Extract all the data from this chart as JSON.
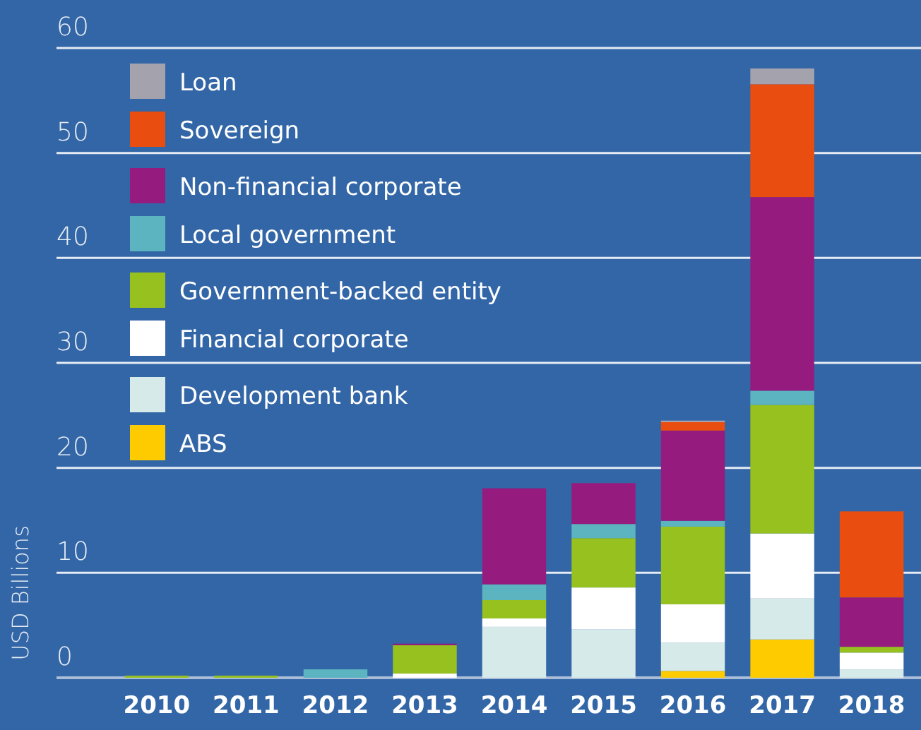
{
  "chart_data": {
    "type": "bar",
    "ylabel": "USD Billions",
    "stacked": true,
    "categories": [
      "2010",
      "2011",
      "2012",
      "2013",
      "2014",
      "2015",
      "2016",
      "2017",
      "2018"
    ],
    "series": [
      {
        "name": "ABS",
        "color": "#fecb00",
        "values": [
          null,
          null,
          null,
          null,
          null,
          null,
          0.65,
          3.65,
          null
        ]
      },
      {
        "name": "Development bank",
        "color": "#d6ebe9",
        "values": [
          null,
          null,
          null,
          null,
          4.85,
          4.6,
          2.7,
          3.9,
          0.8
        ]
      },
      {
        "name": "Financial corporate",
        "color": "#ffffff",
        "values": [
          null,
          null,
          null,
          0.4,
          0.8,
          4.0,
          3.65,
          6.2,
          1.6
        ]
      },
      {
        "name": "Government-backed entity",
        "color": "#97c11f",
        "values": [
          0.2,
          0.2,
          null,
          2.7,
          1.75,
          4.7,
          7.4,
          12.25,
          0.55
        ]
      },
      {
        "name": "Local government",
        "color": "#5db4c1",
        "values": [
          null,
          null,
          0.8,
          null,
          1.5,
          1.35,
          0.55,
          1.35,
          null
        ]
      },
      {
        "name": "Non-financial corporate",
        "color": "#951c7e",
        "values": [
          null,
          null,
          null,
          0.15,
          9.15,
          3.9,
          8.6,
          18.45,
          4.7
        ]
      },
      {
        "name": "Sovereign",
        "color": "#e94e10",
        "values": [
          null,
          null,
          null,
          null,
          null,
          null,
          0.8,
          10.75,
          8.2
        ]
      },
      {
        "name": "Loan",
        "color": "#a4a3ad",
        "values": [
          null,
          null,
          null,
          null,
          null,
          null,
          0.15,
          1.5,
          null
        ]
      }
    ],
    "ylim": [
      0,
      60
    ],
    "yticks": [
      0,
      10,
      20,
      30,
      40,
      50,
      60
    ],
    "grid": "y",
    "legend": "top left"
  }
}
